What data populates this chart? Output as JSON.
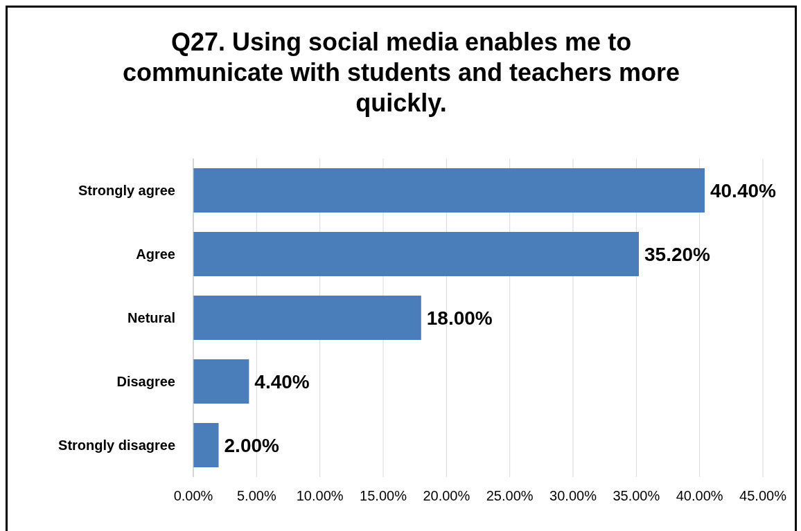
{
  "chart_data": {
    "type": "bar",
    "orientation": "horizontal",
    "title": "Q27. Using social media enables me to communicate with students and teachers more quickly.",
    "categories": [
      "Strongly agree",
      "Agree",
      "Netural",
      "Disagree",
      "Strongly disagree"
    ],
    "values": [
      40.4,
      35.2,
      18.0,
      4.4,
      2.0
    ],
    "value_labels": [
      "40.40%",
      "35.20%",
      "18.00%",
      "4.40%",
      "2.00%"
    ],
    "color": "#4a7ebb",
    "xlim": [
      0,
      45
    ],
    "xticks": [
      {
        "value": 0,
        "label": "0.00%"
      },
      {
        "value": 5,
        "label": "5.00%"
      },
      {
        "value": 10,
        "label": "10.00%"
      },
      {
        "value": 15,
        "label": "15.00%"
      },
      {
        "value": 20,
        "label": "20.00%"
      },
      {
        "value": 25,
        "label": "25.00%"
      },
      {
        "value": 30,
        "label": "30.00%"
      },
      {
        "value": 35,
        "label": "35.00%"
      },
      {
        "value": 40,
        "label": "40.00%"
      },
      {
        "value": 45,
        "label": "45.00%"
      }
    ],
    "grid": "x",
    "legend": false
  }
}
